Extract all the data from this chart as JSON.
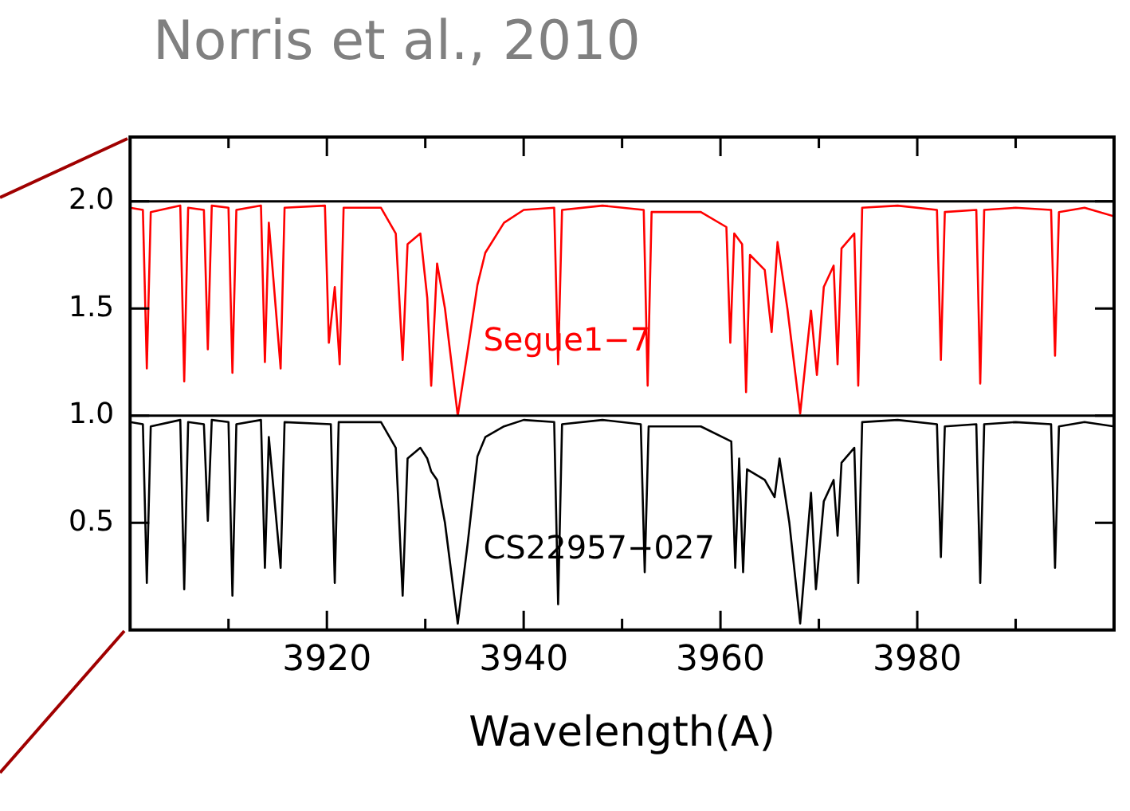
{
  "chart_data": {
    "type": "line",
    "title": "Norris et al., 2010",
    "xlabel": "Wavelength(A)",
    "xlim": [
      3900,
      4000
    ],
    "ylim": [
      0,
      2.3
    ],
    "xticks": [
      {
        "value": 3910,
        "label": null
      },
      {
        "value": 3920,
        "label": "3920"
      },
      {
        "value": 3930,
        "label": null
      },
      {
        "value": 3940,
        "label": "3940"
      },
      {
        "value": 3950,
        "label": null
      },
      {
        "value": 3960,
        "label": "3960"
      },
      {
        "value": 3970,
        "label": null
      },
      {
        "value": 3980,
        "label": "3980"
      },
      {
        "value": 3990,
        "label": null
      }
    ],
    "yticks": [
      {
        "value": 0.5,
        "label": "0.5"
      },
      {
        "value": 1,
        "label": "1.0"
      },
      {
        "value": 1.5,
        "label": "1.5"
      },
      {
        "value": 2,
        "label": "2.0"
      }
    ],
    "grid": false,
    "legend": false,
    "marker": "none",
    "line_style": "solid",
    "ref_lines": [
      {
        "axis": "y",
        "value": 2,
        "color": "#000000"
      },
      {
        "axis": "y",
        "value": 1,
        "color": "#000000"
      }
    ],
    "series": [
      {
        "name": "Segue1−7",
        "color": "#ff0000",
        "x": [
          3900.0,
          3901.3,
          3901.7,
          3902.1,
          3905.1,
          3905.5,
          3905.9,
          3907.5,
          3907.9,
          3908.3,
          3910.0,
          3910.4,
          3910.8,
          3913.3,
          3913.7,
          3914.1,
          3915.3,
          3915.7,
          3919.8,
          3920.2,
          3920.8,
          3921.3,
          3921.7,
          3925.5,
          3927.0,
          3927.7,
          3928.2,
          3929.5,
          3930.2,
          3930.6,
          3931.2,
          3932.0,
          3933.3,
          3934.3,
          3935.3,
          3936.1,
          3938.0,
          3940.0,
          3943.1,
          3943.5,
          3943.9,
          3948.0,
          3952.2,
          3952.6,
          3953.0,
          3958.0,
          3960.6,
          3961.0,
          3961.4,
          3962.2,
          3962.6,
          3963.0,
          3964.5,
          3965.2,
          3965.8,
          3966.8,
          3968.1,
          3969.2,
          3969.8,
          3970.5,
          3971.5,
          3971.9,
          3972.3,
          3973.6,
          3974.0,
          3974.4,
          3978.0,
          3982.0,
          3982.4,
          3982.8,
          3986.0,
          3986.4,
          3986.8,
          3990.0,
          3993.6,
          3994.0,
          3994.4,
          3997.0,
          4000.0
        ],
        "values": [
          1.97,
          1.96,
          1.22,
          1.95,
          1.98,
          1.16,
          1.97,
          1.96,
          1.31,
          1.98,
          1.97,
          1.2,
          1.96,
          1.98,
          1.25,
          1.9,
          1.22,
          1.97,
          1.98,
          1.34,
          1.6,
          1.24,
          1.97,
          1.97,
          1.85,
          1.26,
          1.8,
          1.85,
          1.55,
          1.14,
          1.71,
          1.5,
          1.0,
          1.3,
          1.61,
          1.76,
          1.9,
          1.96,
          1.97,
          1.24,
          1.96,
          1.98,
          1.96,
          1.14,
          1.95,
          1.95,
          1.88,
          1.34,
          1.85,
          1.8,
          1.11,
          1.75,
          1.68,
          1.39,
          1.81,
          1.5,
          1.01,
          1.49,
          1.19,
          1.6,
          1.7,
          1.24,
          1.78,
          1.85,
          1.14,
          1.97,
          1.98,
          1.96,
          1.26,
          1.95,
          1.96,
          1.15,
          1.96,
          1.97,
          1.96,
          1.28,
          1.95,
          1.97,
          1.93
        ]
      },
      {
        "name": "CS22957−027",
        "color": "#000000",
        "x": [
          3900.0,
          3901.3,
          3901.7,
          3902.1,
          3905.1,
          3905.5,
          3905.9,
          3907.5,
          3907.9,
          3908.3,
          3910.0,
          3910.4,
          3910.8,
          3913.3,
          3913.7,
          3914.1,
          3915.3,
          3915.7,
          3920.4,
          3920.8,
          3921.2,
          3925.5,
          3927.0,
          3927.7,
          3928.2,
          3929.5,
          3930.2,
          3930.6,
          3931.2,
          3932.0,
          3933.3,
          3934.3,
          3935.3,
          3936.1,
          3938.0,
          3940.0,
          3943.1,
          3943.5,
          3943.9,
          3948.0,
          3951.9,
          3952.3,
          3952.7,
          3958.0,
          3961.1,
          3961.5,
          3961.9,
          3962.3,
          3962.7,
          3964.5,
          3965.5,
          3966.0,
          3967.0,
          3968.1,
          3969.2,
          3969.7,
          3970.5,
          3971.5,
          3971.9,
          3972.3,
          3973.6,
          3974.0,
          3974.4,
          3978.0,
          3982.0,
          3982.4,
          3982.8,
          3986.0,
          3986.4,
          3986.8,
          3990.0,
          3993.6,
          3994.0,
          3994.4,
          3997.0,
          4000.0
        ],
        "values": [
          0.97,
          0.96,
          0.22,
          0.95,
          0.98,
          0.19,
          0.97,
          0.96,
          0.51,
          0.98,
          0.97,
          0.16,
          0.96,
          0.98,
          0.29,
          0.9,
          0.29,
          0.97,
          0.96,
          0.22,
          0.97,
          0.97,
          0.85,
          0.16,
          0.8,
          0.85,
          0.8,
          0.74,
          0.7,
          0.5,
          0.03,
          0.4,
          0.81,
          0.9,
          0.95,
          0.98,
          0.97,
          0.12,
          0.96,
          0.98,
          0.96,
          0.27,
          0.95,
          0.95,
          0.88,
          0.29,
          0.8,
          0.27,
          0.75,
          0.7,
          0.62,
          0.8,
          0.5,
          0.03,
          0.64,
          0.19,
          0.6,
          0.7,
          0.44,
          0.78,
          0.85,
          0.22,
          0.97,
          0.98,
          0.96,
          0.34,
          0.95,
          0.96,
          0.22,
          0.96,
          0.97,
          0.96,
          0.29,
          0.95,
          0.97,
          0.95
        ]
      }
    ]
  }
}
